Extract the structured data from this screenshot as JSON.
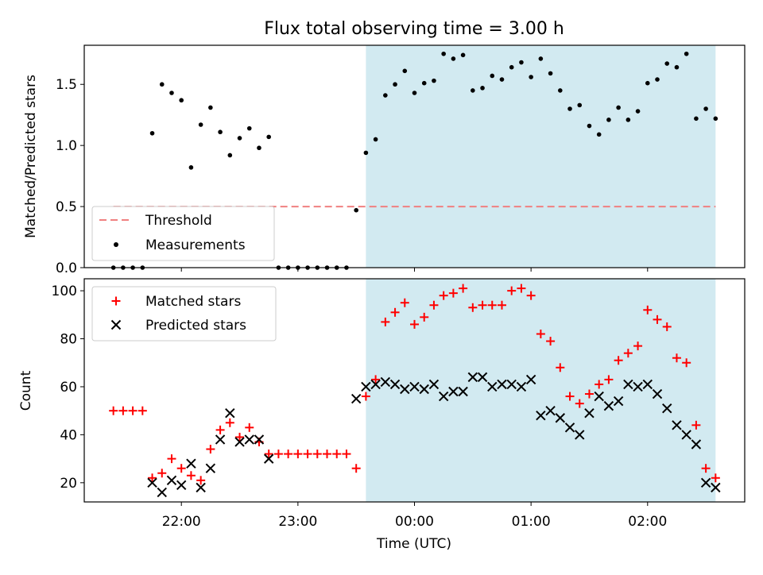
{
  "title": "Flux total observing time = 3.00 h",
  "colors": {
    "shade": "#add8e6",
    "threshold": "#f08080",
    "measurement": "#000000",
    "matched": "#ff0000",
    "predicted": "#000000"
  },
  "chart_data": [
    {
      "type": "scatter",
      "panel": "top",
      "ylabel": "Matched/Predicted stars",
      "ylim": [
        0,
        1.82
      ],
      "yticks": [
        0.0,
        0.5,
        1.0,
        1.5
      ],
      "ytick_labels": [
        "0.0",
        "0.5",
        "1.0",
        "1.5"
      ],
      "xlim": [
        "21:10",
        "02:50"
      ],
      "shaded_region": [
        "23:35",
        "02:35"
      ],
      "threshold": {
        "name": "Threshold",
        "value": 0.5,
        "x_range": [
          "21:25",
          "02:35"
        ]
      },
      "legend": {
        "position": "lower-left",
        "entries": [
          "Threshold",
          "Measurements"
        ]
      },
      "series": [
        {
          "name": "Measurements",
          "x": [
            "21:25",
            "21:30",
            "21:35",
            "21:40",
            "21:45",
            "21:50",
            "21:55",
            "22:00",
            "22:05",
            "22:10",
            "22:15",
            "22:20",
            "22:25",
            "22:30",
            "22:35",
            "22:40",
            "22:45",
            "22:50",
            "22:55",
            "23:00",
            "23:05",
            "23:10",
            "23:15",
            "23:20",
            "23:25",
            "23:30",
            "23:35",
            "23:40",
            "23:45",
            "23:50",
            "23:55",
            "00:00",
            "00:05",
            "00:10",
            "00:15",
            "00:20",
            "00:25",
            "00:30",
            "00:35",
            "00:40",
            "00:45",
            "00:50",
            "00:55",
            "01:00",
            "01:05",
            "01:10",
            "01:15",
            "01:20",
            "01:25",
            "01:30",
            "01:35",
            "01:40",
            "01:45",
            "01:50",
            "01:55",
            "02:00",
            "02:05",
            "02:10",
            "02:15",
            "02:20",
            "02:25",
            "02:30",
            "02:35"
          ],
          "y": [
            0,
            0,
            0,
            0,
            1.1,
            1.5,
            1.43,
            1.37,
            0.82,
            1.17,
            1.31,
            1.11,
            0.92,
            1.06,
            1.14,
            0.98,
            1.07,
            0,
            0,
            0,
            0,
            0,
            0,
            0,
            0,
            0.47,
            0.94,
            1.05,
            1.41,
            1.5,
            1.61,
            1.43,
            1.51,
            1.53,
            1.75,
            1.71,
            1.74,
            1.45,
            1.47,
            1.57,
            1.54,
            1.64,
            1.68,
            1.56,
            1.71,
            1.59,
            1.45,
            1.3,
            1.33,
            1.16,
            1.09,
            1.21,
            1.31,
            1.21,
            1.28,
            1.51,
            1.54,
            1.67,
            1.64,
            1.75,
            1.22,
            1.3,
            1.22
          ]
        }
      ]
    },
    {
      "type": "scatter",
      "panel": "bottom",
      "xlabel": "Time (UTC)",
      "ylabel": "Count",
      "ylim": [
        12,
        105
      ],
      "yticks": [
        20,
        40,
        60,
        80,
        100
      ],
      "xlim": [
        "21:10",
        "02:50"
      ],
      "xticks": [
        "22:00",
        "23:00",
        "00:00",
        "01:00",
        "02:00"
      ],
      "shaded_region": [
        "23:35",
        "02:35"
      ],
      "legend": {
        "position": "upper-left",
        "entries": [
          "Matched stars",
          "Predicted stars"
        ]
      },
      "series": [
        {
          "name": "Matched stars",
          "marker": "+",
          "x": [
            "21:25",
            "21:30",
            "21:35",
            "21:40",
            "21:45",
            "21:50",
            "21:55",
            "22:00",
            "22:05",
            "22:10",
            "22:15",
            "22:20",
            "22:25",
            "22:30",
            "22:35",
            "22:40",
            "22:45",
            "22:50",
            "22:55",
            "23:00",
            "23:05",
            "23:10",
            "23:15",
            "23:20",
            "23:25",
            "23:30",
            "23:35",
            "23:40",
            "23:45",
            "23:50",
            "23:55",
            "00:00",
            "00:05",
            "00:10",
            "00:15",
            "00:20",
            "00:25",
            "00:30",
            "00:35",
            "00:40",
            "00:45",
            "00:50",
            "00:55",
            "01:00",
            "01:05",
            "01:10",
            "01:15",
            "01:20",
            "01:25",
            "01:30",
            "01:35",
            "01:40",
            "01:45",
            "01:50",
            "01:55",
            "02:00",
            "02:05",
            "02:10",
            "02:15",
            "02:20",
            "02:25",
            "02:30",
            "02:35"
          ],
          "y": [
            50,
            50,
            50,
            50,
            22,
            24,
            30,
            26,
            23,
            21,
            34,
            42,
            45,
            39,
            43,
            37,
            32,
            32,
            32,
            32,
            32,
            32,
            32,
            32,
            32,
            26,
            56,
            63,
            87,
            91,
            95,
            86,
            89,
            94,
            98,
            99,
            101,
            93,
            94,
            94,
            94,
            100,
            101,
            98,
            82,
            79,
            68,
            56,
            53,
            57,
            61,
            63,
            71,
            74,
            77,
            92,
            88,
            85,
            72,
            70,
            44,
            26,
            22
          ]
        },
        {
          "name": "Predicted stars",
          "marker": "x",
          "x": [
            "21:45",
            "21:50",
            "21:55",
            "22:00",
            "22:05",
            "22:10",
            "22:15",
            "22:20",
            "22:25",
            "22:30",
            "22:35",
            "22:40",
            "22:45",
            "23:30",
            "23:35",
            "23:40",
            "23:45",
            "23:50",
            "23:55",
            "00:00",
            "00:05",
            "00:10",
            "00:15",
            "00:20",
            "00:25",
            "00:30",
            "00:35",
            "00:40",
            "00:45",
            "00:50",
            "00:55",
            "01:00",
            "01:05",
            "01:10",
            "01:15",
            "01:20",
            "01:25",
            "01:30",
            "01:35",
            "01:40",
            "01:45",
            "01:50",
            "01:55",
            "02:00",
            "02:05",
            "02:10",
            "02:15",
            "02:20",
            "02:25",
            "02:30",
            "02:35"
          ],
          "y": [
            20,
            16,
            21,
            19,
            28,
            18,
            26,
            38,
            49,
            37,
            38,
            38,
            30,
            55,
            60,
            61,
            62,
            61,
            59,
            60,
            59,
            61,
            56,
            58,
            58,
            64,
            64,
            60,
            61,
            61,
            60,
            63,
            48,
            50,
            47,
            43,
            40,
            49,
            56,
            52,
            54,
            61,
            60,
            61,
            57,
            51,
            44,
            40,
            36,
            20,
            18
          ]
        }
      ]
    }
  ]
}
